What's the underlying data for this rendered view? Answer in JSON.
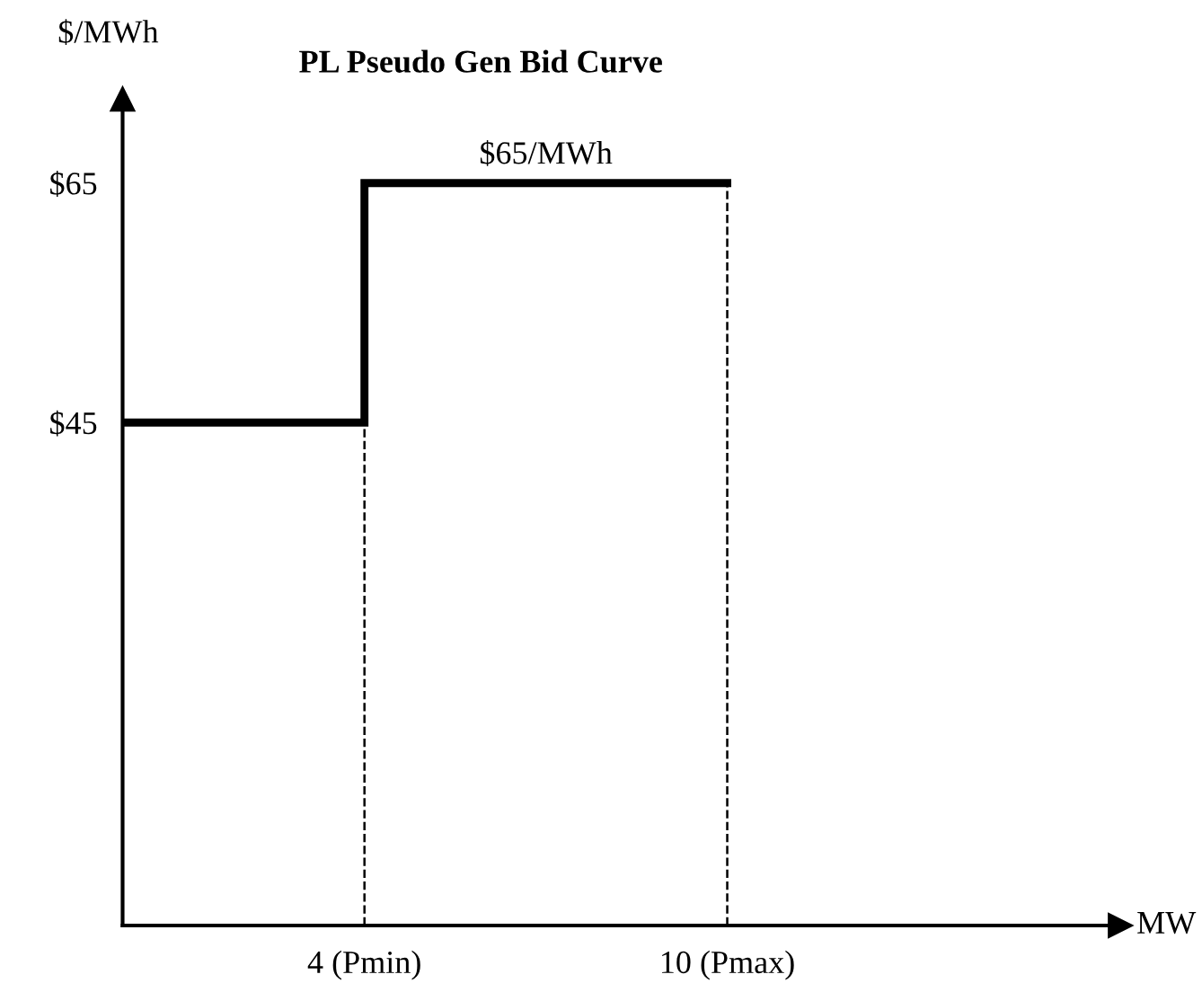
{
  "chart_data": {
    "type": "step",
    "title": "PL Pseudo Gen Bid Curve",
    "xlabel": "MW",
    "ylabel": "$/MWh",
    "x": [
      0,
      4,
      10
    ],
    "series": [
      {
        "color": "#000000",
        "values": [
          45,
          65,
          65
        ]
      }
    ],
    "xlim": [
      0,
      16.5
    ],
    "ylim": [
      3,
      72
    ],
    "xticks": [
      {
        "value": 4,
        "label": "4 (Pmin)"
      },
      {
        "value": 10,
        "label": "10 (Pmax)"
      }
    ],
    "yticks": [
      {
        "value": 45,
        "label": "$45"
      },
      {
        "value": 65,
        "label": "$65"
      }
    ],
    "ref_lines": [
      {
        "axis": "x",
        "value": 4,
        "color": "#000000",
        "line_style": "dashed"
      },
      {
        "axis": "x",
        "value": 10,
        "color": "#000000",
        "line_style": "dashed"
      }
    ],
    "annotations": [
      {
        "text": "$65/MWh",
        "x": 7,
        "y": 65
      }
    ],
    "grid": false,
    "legend": false,
    "line_style": "solid",
    "marker": "none"
  }
}
